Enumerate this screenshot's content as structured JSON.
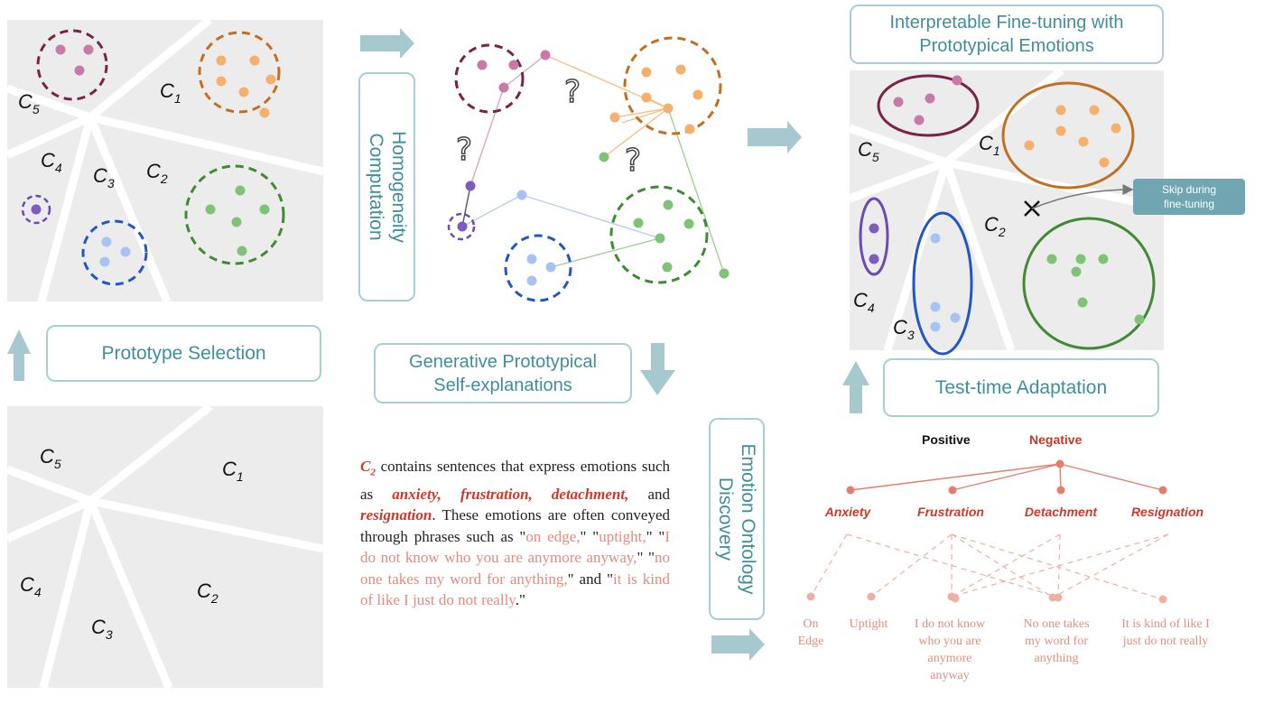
{
  "labels": {
    "prototype_selection": "Prototype Selection",
    "homogeneity_line1": "Homogeneity",
    "homogeneity_line2": "Computation",
    "generative_line1": "Generative Prototypical",
    "generative_line2": "Self-explanations",
    "interpretable_line1": "Interpretable Fine-tuning with",
    "interpretable_line2": "Prototypical Emotions",
    "test_time": "Test-time Adaptation",
    "ontology_line1": "Emotion Ontology",
    "ontology_line2": "Discovery",
    "skip_line1": "Skip during",
    "skip_line2": "fine-tuning",
    "question_mark": "?"
  },
  "clusters": {
    "c1": {
      "letter": "C",
      "sub": "1"
    },
    "c2": {
      "letter": "C",
      "sub": "2"
    },
    "c3": {
      "letter": "C",
      "sub": "3"
    },
    "c4": {
      "letter": "C",
      "sub": "4"
    },
    "c5": {
      "letter": "C",
      "sub": "5"
    }
  },
  "explanation": {
    "cluster": "C",
    "cluster_sub": "2",
    "t1": " contains sentences that express emotions such as ",
    "e1": "anxiety, frustration, detachment,",
    "t2": " and ",
    "e2": "resignation",
    "t3": ". These emotions are often conveyed through phrases such as \"",
    "p1": "on edge,",
    "t4": "\" \"",
    "p2": "uptight,",
    "t5": "\" \"",
    "p3": "I do not know who you are anymore anyway,",
    "t6": "\" \"",
    "p4": "no one takes my word for anything,",
    "t7": "\" and \"",
    "p5": "it is kind of like I just do not really",
    "t8": ".\""
  },
  "ontology": {
    "positive": "Positive",
    "negative": "Negative",
    "emotions": [
      "Anxiety",
      "Frustration",
      "Detachment",
      "Resignation"
    ],
    "phrases": [
      "On\nEdge",
      "Uptight",
      "I do not know\nwho you are\nanymore\nanyway",
      "No one takes\nmy word for\nanything",
      "It is kind of like I\njust do not really"
    ]
  },
  "colors": {
    "panel": "#ececec",
    "teal": "#3f8f9b",
    "teal_border": "#a9cfd6",
    "arrow": "#a6c9cf",
    "c5": "#7a2248",
    "c5_dot": "#c87aa7",
    "c1": "#c0701e",
    "c1_dot": "#f5b06e",
    "c2": "#3f8a32",
    "c2_dot": "#7fc476",
    "c3": "#2056c6",
    "c3_dot": "#a8c3f2",
    "c4": "#6a4bb0",
    "c4_dot": "#7c5cbf",
    "red": "#d0382b",
    "salmon": "#e0907f"
  }
}
